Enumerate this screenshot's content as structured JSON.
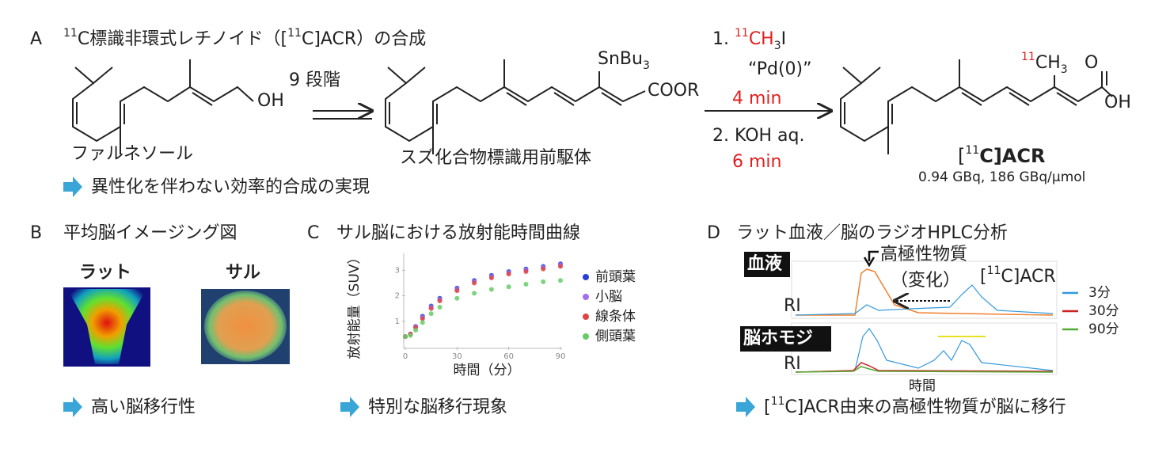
{
  "panel_a": {
    "letter": "A",
    "title": [
      "11",
      "C標識非環式レチノイド（[",
      "11",
      "C]ACR）の合成"
    ],
    "start_label": "ファルネソール",
    "oh1": "OH",
    "step1": "9 段階",
    "precursor_label": "スズ化合物標識用前駆体",
    "snbu": [
      "SnBu",
      "3"
    ],
    "coor": "COOR",
    "reagent1": [
      "1. ",
      "11",
      "CH",
      "3",
      "I"
    ],
    "pd": "“Pd(0)”",
    "time1": "4 min",
    "reagent2": "2. KOH aq.",
    "time2": "6 min",
    "product_ch3": [
      "11",
      "CH",
      "3"
    ],
    "o": "O",
    "oh2": "OH",
    "product_label": [
      "[",
      "11",
      "C]ACR"
    ],
    "product_info": "0.94 GBq, 186 GBq/μmol",
    "conclusion": "異性化を伴わない効率的合成の実現"
  },
  "panel_b": {
    "letter": "B",
    "title": "平均脳イメージング図",
    "rat": "ラット",
    "monkey": "サル",
    "conclusion": "高い脳移行性"
  },
  "panel_c": {
    "letter": "C",
    "title": "サル脳における放射能時間曲線",
    "conclusion": "特別な脳移行現象",
    "chart_data": {
      "type": "scatter",
      "y_label": "放射能量（SUV）",
      "x_label": "時間（分）",
      "xlim": [
        0,
        90
      ],
      "xticks": [
        0,
        30,
        60,
        90
      ],
      "ylim": [
        0,
        3.6
      ],
      "yticks": [
        1,
        2,
        3
      ],
      "x": [
        0,
        3,
        6,
        10,
        15,
        20,
        30,
        40,
        50,
        60,
        70,
        80,
        90
      ],
      "series": [
        {
          "name": "前頭葉",
          "color": "#2b3fd8",
          "values": [
            0.4,
            0.5,
            0.8,
            1.2,
            1.6,
            1.9,
            2.3,
            2.6,
            2.8,
            2.95,
            3.05,
            3.15,
            3.25
          ]
        },
        {
          "name": "小脳",
          "color": "#a36ff0",
          "values": [
            0.4,
            0.5,
            0.8,
            1.15,
            1.55,
            1.85,
            2.25,
            2.55,
            2.75,
            2.9,
            3.0,
            3.1,
            3.2
          ]
        },
        {
          "name": "線条体",
          "color": "#e04545",
          "values": [
            0.4,
            0.5,
            0.75,
            1.1,
            1.5,
            1.8,
            2.2,
            2.5,
            2.7,
            2.85,
            2.95,
            3.05,
            3.15
          ]
        },
        {
          "name": "側頭葉",
          "color": "#66cc66",
          "values": [
            0.4,
            0.45,
            0.65,
            0.95,
            1.3,
            1.55,
            1.9,
            2.1,
            2.25,
            2.35,
            2.45,
            2.55,
            2.6
          ]
        }
      ]
    }
  },
  "panel_d": {
    "letter": "D",
    "title": "ラット血液／脳のラジオHPLC分析",
    "blood": "血液",
    "brain": "脳ホモジ",
    "ri1": "RI",
    "ri2": "RI",
    "polar": "高極性物質",
    "change": "（変化）",
    "acr": [
      "[",
      "11",
      "C]ACR"
    ],
    "legend": [
      {
        "name": "3分",
        "color": "#3399dd"
      },
      {
        "name": "30分",
        "color": "#cc2222"
      },
      {
        "name": "90分",
        "color": "#55aa33"
      }
    ],
    "x_label": "時間",
    "conclusion": [
      "[",
      "11",
      "C]ACR由来の高極性物質が脳に移行"
    ]
  }
}
